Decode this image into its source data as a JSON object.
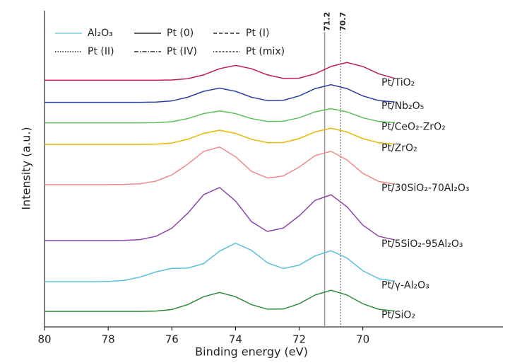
{
  "chart_data": {
    "type": "line",
    "xlabel": "Binding energy (eV)",
    "ylabel": "Intensity (a.u.)",
    "xlim": [
      80,
      65.6
    ],
    "xticks": [
      80,
      78,
      76,
      74,
      72,
      70
    ],
    "ylim": [
      0,
      100
    ],
    "vlines": [
      71.2,
      70.7
    ],
    "legend": [
      {
        "name": "Al₂O₃",
        "color": "#5bc0de",
        "dash": "solid"
      },
      {
        "name": "Pt (0)",
        "color": "#000000",
        "dash": "solid"
      },
      {
        "name": "Pt (I)",
        "color": "#000000",
        "dash": "dashed"
      },
      {
        "name": "Pt (II)",
        "color": "#000000",
        "dash": "dotted"
      },
      {
        "name": "Pt (IV)",
        "color": "#000000",
        "dash": "dashdot"
      },
      {
        "name": "Pt (mix)",
        "color": "#000000",
        "dash": "dense"
      }
    ],
    "x": [
      80,
      79.5,
      79,
      78.5,
      78,
      77.5,
      77,
      76.5,
      76,
      75.5,
      75,
      74.5,
      74,
      73.5,
      73,
      72.5,
      72,
      71.5,
      71,
      70.5,
      70,
      69.5,
      69
    ],
    "series": [
      {
        "name": "Pt/TiO₂",
        "color": "#c2185b",
        "values": [
          78,
          78,
          78,
          78,
          78,
          78,
          78,
          78,
          78.08,
          78.47,
          79.69,
          81.64,
          82.7,
          81.64,
          79.69,
          78.57,
          78.64,
          80.02,
          82.34,
          83.6,
          82.34,
          80.02,
          78.56
        ]
      },
      {
        "name": "Pt/Nb₂O₅",
        "color": "#2b3fa0",
        "values": [
          71,
          71,
          71,
          71,
          71,
          71,
          71,
          71.08,
          71.45,
          72.62,
          74.49,
          75.5,
          74.49,
          72.62,
          71.55,
          71.64,
          73.02,
          75.34,
          76.6,
          75.34,
          73.02,
          71.56,
          71.1
        ]
      },
      {
        "name": "Pt/CeO₂-ZrO₂",
        "color": "#5cbf5c",
        "values": [
          64.5,
          64.5,
          64.5,
          64.5,
          64.5,
          64.5,
          64.5,
          64.56,
          64.88,
          65.87,
          67.45,
          68.3,
          67.45,
          65.87,
          64.96,
          65.01,
          66.12,
          67.99,
          69.0,
          67.99,
          66.12,
          64.95,
          64.58
        ]
      },
      {
        "name": "Pt/ZrO₂",
        "color": "#e6b800",
        "values": [
          57.7,
          57.7,
          57.7,
          57.7,
          57.7,
          57.7,
          57.7,
          57.78,
          58.15,
          59.32,
          61.19,
          62.2,
          61.19,
          59.32,
          58.24,
          58.29,
          59.54,
          61.65,
          62.8,
          61.65,
          59.54,
          58.21,
          57.79
        ]
      },
      {
        "name": "Pt/30SiO₂-70Al₂O₃",
        "color": "#f08a8a",
        "values": [
          45,
          45,
          45,
          45,
          45,
          45.04,
          45.25,
          46.09,
          48.04,
          51.46,
          55.47,
          56.9,
          53.81,
          49.2,
          47.09,
          47.72,
          50.53,
          54.15,
          55.52,
          52.8,
          48.56,
          45.98,
          45.17
        ]
      },
      {
        "name": "Pt/5SiO₂-95Al₂O₃",
        "color": "#8e44ad",
        "values": [
          27.3,
          27.3,
          27.3,
          27.3,
          27.3,
          27.35,
          27.6,
          28.65,
          31.2,
          35.95,
          41.8,
          44.08,
          39.82,
          33.3,
          30.18,
          31.24,
          35.12,
          40.02,
          41.78,
          37.99,
          32.17,
          28.64,
          27.53
        ]
      },
      {
        "name": "Pt/γ-Al₂O₃",
        "color": "#5bc0de",
        "values": [
          14.3,
          14.3,
          14.3,
          14.3,
          14.37,
          14.7,
          15.74,
          17.4,
          18.5,
          18.59,
          20.02,
          23.95,
          26.47,
          24.24,
          20.29,
          18.45,
          19.51,
          22.46,
          24.1,
          21.77,
          17.76,
          15.26,
          14.46
        ]
      },
      {
        "name": "Pt/SiO₂",
        "color": "#2e8b3e",
        "values": [
          4.9,
          4.9,
          4.9,
          4.9,
          4.9,
          4.9,
          4.9,
          5.0,
          5.5,
          7.06,
          9.55,
          10.9,
          9.55,
          7.06,
          5.61,
          5.67,
          7.31,
          10.09,
          11.6,
          10.09,
          7.31,
          5.57,
          5.01
        ]
      }
    ]
  }
}
